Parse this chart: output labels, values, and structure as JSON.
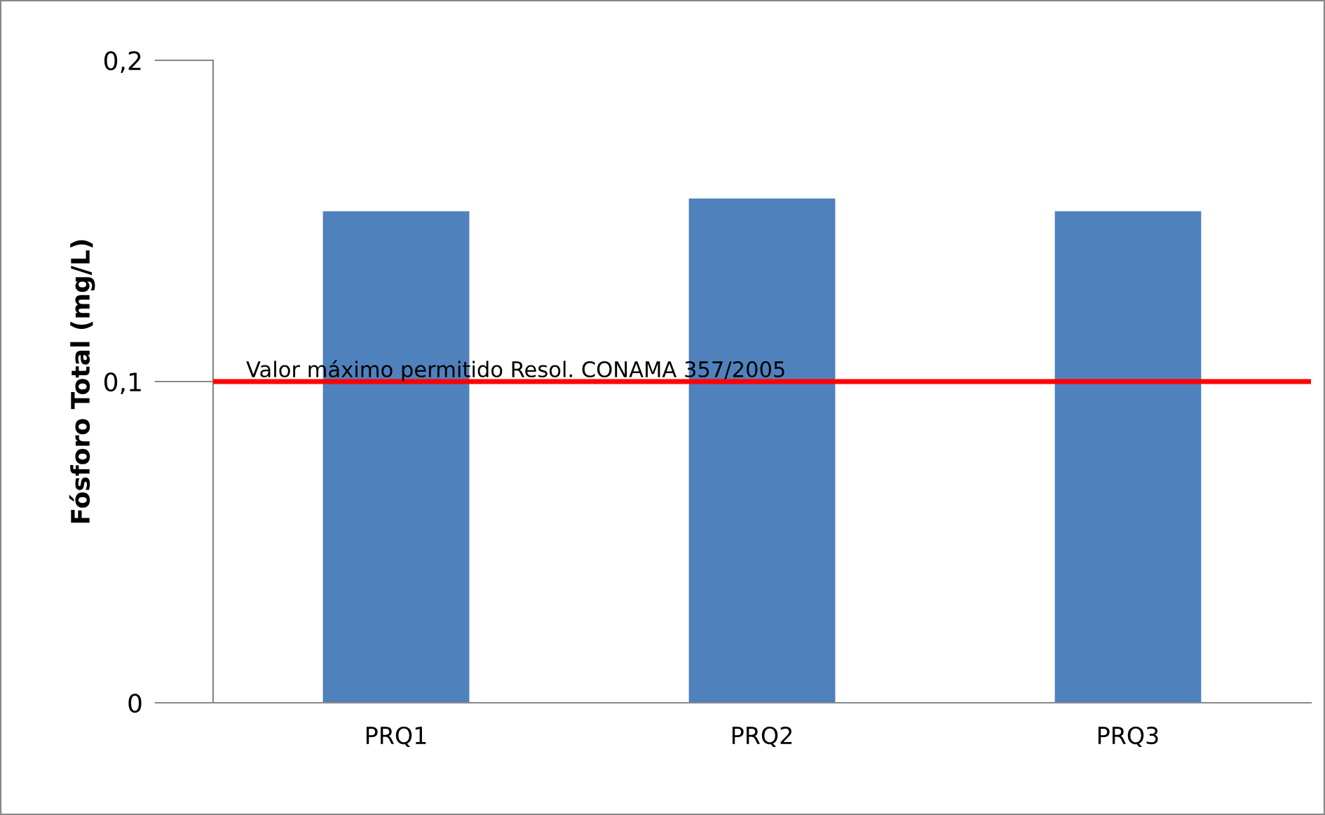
{
  "chart_data": {
    "type": "bar",
    "ylabel": "Fósforo Total (mg/L)",
    "categories": [
      "PRQ1",
      "PRQ2",
      "PRQ3"
    ],
    "values": [
      0.153,
      0.157,
      0.153
    ],
    "color": "#4f81bd",
    "ylim": [
      0,
      0.2
    ],
    "yticks": [
      {
        "value": 0,
        "label": "0"
      },
      {
        "value": 0.1,
        "label": "0,1"
      },
      {
        "value": 0.2,
        "label": "0,2"
      }
    ],
    "grid": false,
    "legend": false,
    "ref_lines": [
      {
        "axis": "y",
        "value": 0.1,
        "label": "Valor máximo permitido Resol. CONAMA 357/2005",
        "color": "#ff0000",
        "line_style": "solid"
      }
    ]
  }
}
